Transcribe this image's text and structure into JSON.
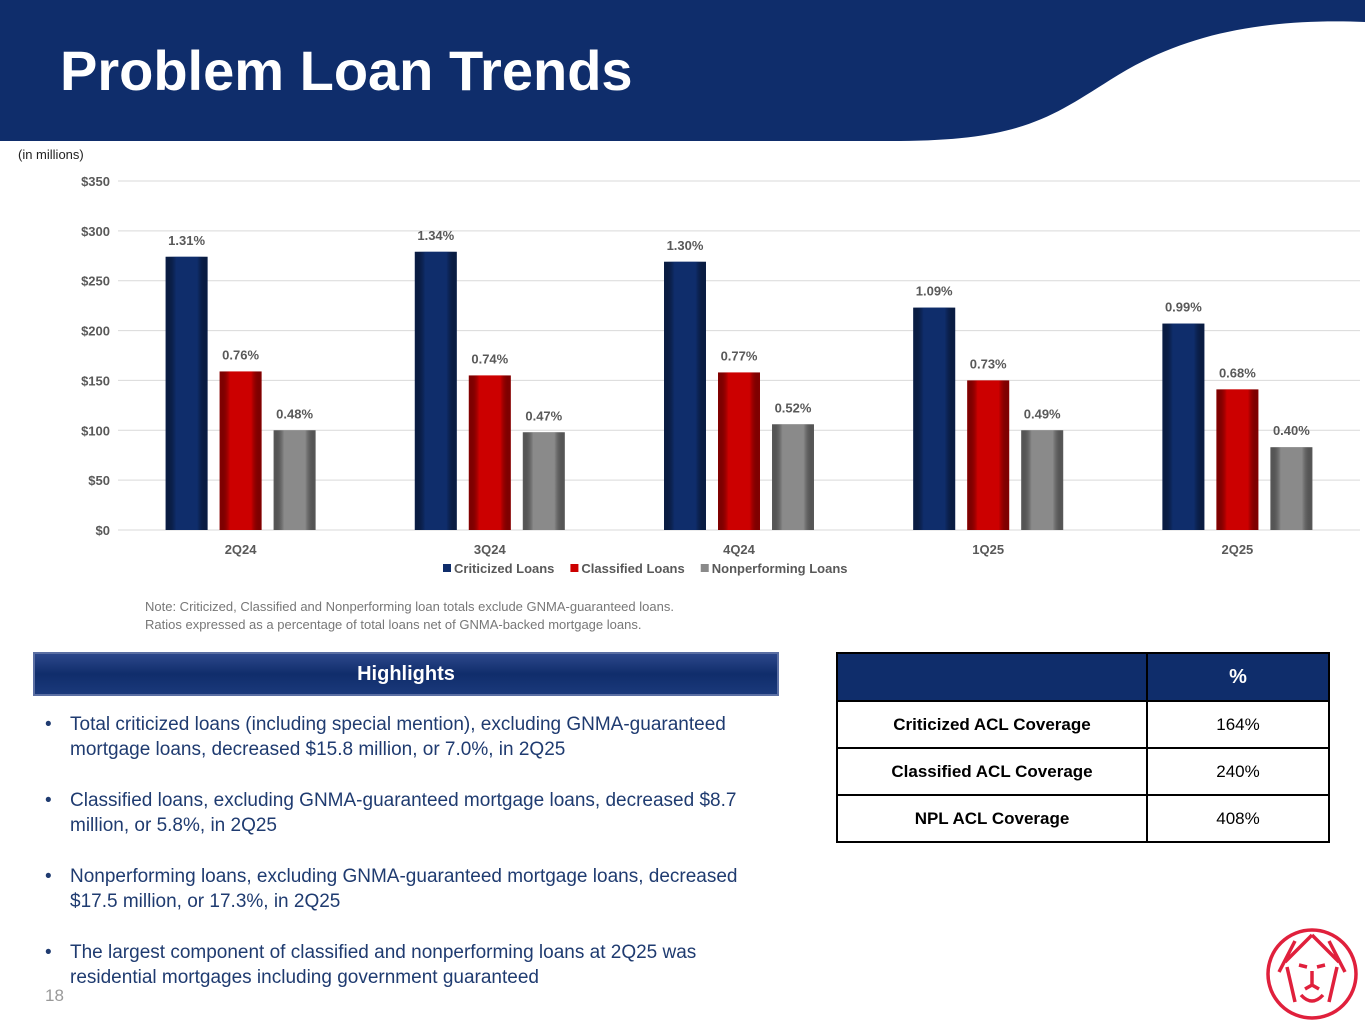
{
  "header": {
    "title": "Problem Loan Trends",
    "units": "(in millions)"
  },
  "chart_data": {
    "type": "bar",
    "categories": [
      "2Q24",
      "3Q24",
      "4Q24",
      "1Q25",
      "2Q25"
    ],
    "ylim": [
      0,
      350
    ],
    "yticks": [
      "$0",
      "$50",
      "$100",
      "$150",
      "$200",
      "$250",
      "$300",
      "$350"
    ],
    "grid": true,
    "legend_position": "bottom",
    "series": [
      {
        "name": "Criticized Loans",
        "color": "#0f2d6b",
        "values": [
          274,
          279,
          269,
          223,
          207
        ],
        "labels": [
          "1.31%",
          "1.34%",
          "1.30%",
          "1.09%",
          "0.99%"
        ]
      },
      {
        "name": "Classified Loans",
        "color": "#cc0000",
        "values": [
          159,
          155,
          158,
          150,
          141
        ],
        "labels": [
          "0.76%",
          "0.74%",
          "0.77%",
          "0.73%",
          "0.68%"
        ]
      },
      {
        "name": "Nonperforming Loans",
        "color": "#8a8a8a",
        "values": [
          100,
          98,
          106,
          100,
          83
        ],
        "labels": [
          "0.48%",
          "0.47%",
          "0.52%",
          "0.49%",
          "0.40%"
        ]
      }
    ]
  },
  "note": [
    "Note: Criticized, Classified and Nonperforming loan totals exclude GNMA-guaranteed loans.",
    "Ratios expressed as a percentage of total loans net of GNMA-backed mortgage loans."
  ],
  "highlights": {
    "title": "Highlights",
    "items": [
      "Total criticized loans (including special mention), excluding GNMA-guaranteed mortgage loans, decreased $15.8 million, or 7.0%, in 2Q25",
      "Classified loans, excluding GNMA-guaranteed mortgage loans, decreased $8.7 million, or 5.8%, in 2Q25",
      "Nonperforming loans, excluding GNMA-guaranteed mortgage loans, decreased $17.5 million, or 17.3%, in 2Q25",
      "The largest component of classified and nonperforming loans at 2Q25 was residential mortgages including government guaranteed"
    ]
  },
  "coverage": {
    "header": "%",
    "rows": [
      {
        "label": "Criticized ACL Coverage",
        "value": "164%"
      },
      {
        "label": "Classified ACL Coverage",
        "value": "240%"
      },
      {
        "label": "NPL ACL Coverage",
        "value": "408%"
      }
    ]
  },
  "page_number": "18",
  "colors": {
    "brand_navy": "#0f2d6b",
    "brand_red": "#e0203c"
  }
}
